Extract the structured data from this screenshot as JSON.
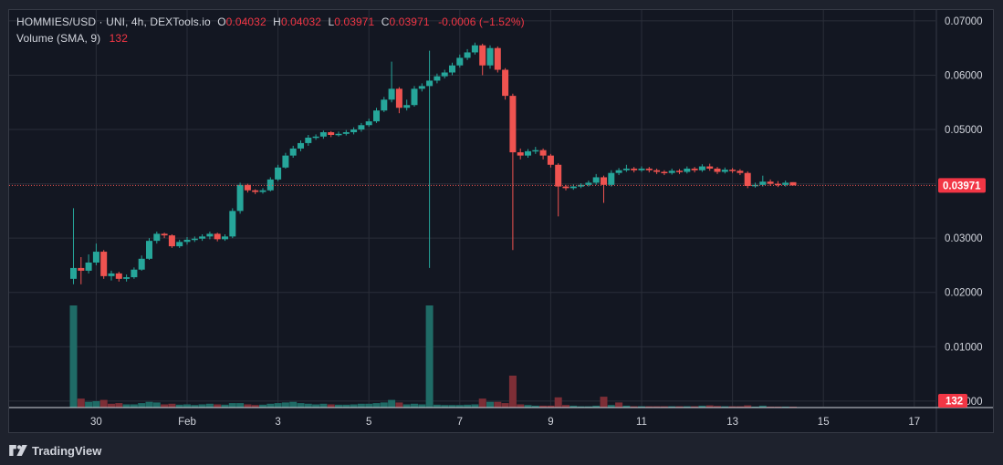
{
  "header": {
    "symbol": "HOMMIES/USD · UNI, 4h, DEXTools.io",
    "open_label": "O",
    "open": "0.04032",
    "high_label": "H",
    "high": "0.04032",
    "low_label": "L",
    "low": "0.03971",
    "close_label": "C",
    "close": "0.03971",
    "change": "-0.0006 (−1.52%)",
    "volume_label": "Volume (SMA, 9)",
    "volume_value": "132"
  },
  "branding": {
    "name": "TradingView",
    "logo_icon": "tradingview-logo-icon"
  },
  "price_badge": "0.03971",
  "volume_badge": "132",
  "colors": {
    "up": "#26a69a",
    "down": "#ef5350",
    "up_vol": "#1f6b66",
    "down_vol": "#7d2e36",
    "price_line": "#ef5350",
    "badge": "#f23645"
  },
  "chart_data": {
    "type": "candlestick",
    "y_axis": {
      "ticks": [
        "0.07000",
        "0.06000",
        "0.05000",
        "0.04000",
        "0.03000",
        "0.02000",
        "0.01000",
        "0.00000"
      ],
      "ylim": [
        -0.0012,
        0.072
      ]
    },
    "x_axis": {
      "ticks": [
        "30",
        "Feb",
        "3",
        "5",
        "7",
        "9",
        "11",
        "13",
        "15",
        "17"
      ]
    },
    "last_price": 0.03971,
    "candles": [
      [
        0.0,
        0.0225,
        0.0245,
        0.0355,
        0.0215
      ],
      [
        0.5,
        0.0245,
        0.024,
        0.0265,
        0.0215
      ],
      [
        1.0,
        0.024,
        0.0255,
        0.027,
        0.0235
      ],
      [
        1.5,
        0.0255,
        0.0275,
        0.029,
        0.025
      ],
      [
        2.0,
        0.0275,
        0.023,
        0.0278,
        0.0225
      ],
      [
        2.5,
        0.023,
        0.0235,
        0.024,
        0.0222
      ],
      [
        3.0,
        0.0235,
        0.0225,
        0.0238,
        0.022
      ],
      [
        3.5,
        0.0225,
        0.0228,
        0.0233,
        0.022
      ],
      [
        4.0,
        0.0228,
        0.0242,
        0.0246,
        0.0225
      ],
      [
        4.5,
        0.0242,
        0.0262,
        0.0268,
        0.024
      ],
      [
        5.0,
        0.0262,
        0.0295,
        0.03,
        0.026
      ],
      [
        5.5,
        0.0295,
        0.0308,
        0.0312,
        0.029
      ],
      [
        6.0,
        0.0308,
        0.0305,
        0.031,
        0.03
      ],
      [
        6.5,
        0.0305,
        0.0285,
        0.0307,
        0.0282
      ],
      [
        7.0,
        0.0285,
        0.0293,
        0.0297,
        0.0282
      ],
      [
        7.5,
        0.0293,
        0.0297,
        0.0302,
        0.0288
      ],
      [
        8.0,
        0.0297,
        0.0299,
        0.0303,
        0.0293
      ],
      [
        8.5,
        0.0299,
        0.0303,
        0.0307,
        0.0295
      ],
      [
        9.0,
        0.0303,
        0.0308,
        0.0312,
        0.0298
      ],
      [
        9.5,
        0.0308,
        0.0298,
        0.031,
        0.0294
      ],
      [
        10.0,
        0.0298,
        0.0303,
        0.0307,
        0.0295
      ],
      [
        10.5,
        0.0303,
        0.035,
        0.0355,
        0.03
      ],
      [
        11.0,
        0.035,
        0.0398,
        0.0402,
        0.0345
      ],
      [
        11.5,
        0.0398,
        0.0388,
        0.04,
        0.0384
      ],
      [
        12.0,
        0.0388,
        0.0385,
        0.039,
        0.0381
      ],
      [
        12.5,
        0.0385,
        0.0388,
        0.0392,
        0.0382
      ],
      [
        13.0,
        0.0388,
        0.0408,
        0.0412,
        0.0386
      ],
      [
        13.5,
        0.0408,
        0.043,
        0.0435,
        0.0405
      ],
      [
        14.0,
        0.043,
        0.0452,
        0.0457,
        0.0428
      ],
      [
        14.5,
        0.0452,
        0.0465,
        0.047,
        0.0448
      ],
      [
        15.0,
        0.0465,
        0.0475,
        0.048,
        0.046
      ],
      [
        15.5,
        0.0475,
        0.0485,
        0.049,
        0.047
      ],
      [
        16.0,
        0.0485,
        0.0487,
        0.0491,
        0.0481
      ],
      [
        16.5,
        0.0487,
        0.0495,
        0.0498,
        0.0483
      ],
      [
        17.0,
        0.0495,
        0.049,
        0.0497,
        0.0486
      ],
      [
        17.5,
        0.049,
        0.0492,
        0.0496,
        0.0487
      ],
      [
        18.0,
        0.0492,
        0.0495,
        0.0499,
        0.0489
      ],
      [
        18.5,
        0.0495,
        0.05,
        0.0504,
        0.0491
      ],
      [
        19.0,
        0.05,
        0.0508,
        0.0512,
        0.0496
      ],
      [
        19.5,
        0.0508,
        0.0515,
        0.052,
        0.0505
      ],
      [
        20.0,
        0.0515,
        0.0535,
        0.054,
        0.0512
      ],
      [
        20.5,
        0.0535,
        0.0555,
        0.056,
        0.0532
      ],
      [
        21.0,
        0.0555,
        0.0575,
        0.0625,
        0.055
      ],
      [
        21.5,
        0.0575,
        0.054,
        0.0578,
        0.053
      ],
      [
        22.0,
        0.054,
        0.0545,
        0.0555,
        0.0535
      ],
      [
        22.5,
        0.0545,
        0.0575,
        0.058,
        0.0542
      ],
      [
        23.0,
        0.0575,
        0.058,
        0.0585,
        0.057
      ],
      [
        23.5,
        0.058,
        0.059,
        0.0645,
        0.0245
      ],
      [
        24.0,
        0.059,
        0.0598,
        0.0603,
        0.0585
      ],
      [
        24.5,
        0.0598,
        0.0605,
        0.061,
        0.0594
      ],
      [
        25.0,
        0.0605,
        0.0618,
        0.0623,
        0.06
      ],
      [
        25.5,
        0.0618,
        0.0632,
        0.0638,
        0.0614
      ],
      [
        26.0,
        0.0632,
        0.0642,
        0.0648,
        0.0628
      ],
      [
        26.5,
        0.0642,
        0.0655,
        0.066,
        0.0638
      ],
      [
        27.0,
        0.0655,
        0.0618,
        0.0658,
        0.06
      ],
      [
        27.5,
        0.0618,
        0.065,
        0.0655,
        0.0612
      ],
      [
        28.0,
        0.065,
        0.061,
        0.0653,
        0.0605
      ],
      [
        28.5,
        0.061,
        0.0562,
        0.0613,
        0.0555
      ],
      [
        29.0,
        0.0562,
        0.0458,
        0.0566,
        0.0278
      ],
      [
        29.5,
        0.0458,
        0.0452,
        0.0465,
        0.0445
      ],
      [
        30.0,
        0.0452,
        0.046,
        0.0464,
        0.0448
      ],
      [
        30.5,
        0.046,
        0.0462,
        0.0468,
        0.0455
      ],
      [
        31.0,
        0.0462,
        0.0452,
        0.0465,
        0.0445
      ],
      [
        31.5,
        0.0452,
        0.0435,
        0.0455,
        0.043
      ],
      [
        32.0,
        0.0435,
        0.0395,
        0.0438,
        0.034
      ],
      [
        32.5,
        0.0395,
        0.0392,
        0.0398,
        0.0388
      ],
      [
        33.0,
        0.0392,
        0.0395,
        0.0399,
        0.0389
      ],
      [
        33.5,
        0.0395,
        0.0398,
        0.0401,
        0.0392
      ],
      [
        34.0,
        0.0398,
        0.0402,
        0.0406,
        0.0395
      ],
      [
        34.5,
        0.0402,
        0.0412,
        0.0418,
        0.0398
      ],
      [
        35.0,
        0.0412,
        0.0398,
        0.0415,
        0.0365
      ],
      [
        35.5,
        0.0398,
        0.042,
        0.0425,
        0.0395
      ],
      [
        36.0,
        0.042,
        0.0425,
        0.0429,
        0.0416
      ],
      [
        36.5,
        0.0425,
        0.0428,
        0.0435,
        0.0422
      ],
      [
        37.0,
        0.0428,
        0.0425,
        0.0431,
        0.0421
      ],
      [
        37.5,
        0.0425,
        0.0428,
        0.0432,
        0.0422
      ],
      [
        38.0,
        0.0428,
        0.0425,
        0.0431,
        0.0421
      ],
      [
        38.5,
        0.0425,
        0.0422,
        0.0428,
        0.0418
      ],
      [
        39.0,
        0.0422,
        0.042,
        0.0425,
        0.0416
      ],
      [
        39.5,
        0.042,
        0.0424,
        0.0428,
        0.0417
      ],
      [
        40.0,
        0.0424,
        0.0422,
        0.0427,
        0.0418
      ],
      [
        40.5,
        0.0422,
        0.0428,
        0.0432,
        0.0419
      ],
      [
        41.0,
        0.0428,
        0.0425,
        0.0431,
        0.0421
      ],
      [
        41.5,
        0.0425,
        0.0432,
        0.0436,
        0.0422
      ],
      [
        42.0,
        0.0432,
        0.0428,
        0.0437,
        0.0424
      ],
      [
        42.5,
        0.0428,
        0.0422,
        0.0431,
        0.0418
      ],
      [
        43.0,
        0.0422,
        0.0426,
        0.043,
        0.0419
      ],
      [
        43.5,
        0.0426,
        0.0424,
        0.0429,
        0.042
      ],
      [
        44.0,
        0.0424,
        0.042,
        0.0427,
        0.0416
      ],
      [
        44.5,
        0.042,
        0.0396,
        0.0423,
        0.0392
      ],
      [
        45.0,
        0.0396,
        0.0398,
        0.0402,
        0.0393
      ],
      [
        45.5,
        0.0398,
        0.0404,
        0.0415,
        0.0395
      ],
      [
        46.0,
        0.0404,
        0.04,
        0.0408,
        0.0396
      ],
      [
        46.5,
        0.04,
        0.0398,
        0.0405,
        0.0394
      ],
      [
        47.0,
        0.0398,
        0.0402,
        0.0406,
        0.0395
      ],
      [
        47.5,
        0.0403,
        0.0397,
        0.0403,
        0.0397
      ]
    ],
    "volume": [
      [
        0.0,
        16000,
        "up"
      ],
      [
        0.5,
        1400,
        "down"
      ],
      [
        1.0,
        900,
        "up"
      ],
      [
        1.5,
        1000,
        "up"
      ],
      [
        2.0,
        1200,
        "down"
      ],
      [
        2.5,
        600,
        "down"
      ],
      [
        3.0,
        700,
        "down"
      ],
      [
        3.5,
        500,
        "up"
      ],
      [
        4.0,
        500,
        "up"
      ],
      [
        4.5,
        700,
        "up"
      ],
      [
        5.0,
        900,
        "up"
      ],
      [
        5.5,
        800,
        "up"
      ],
      [
        6.0,
        500,
        "down"
      ],
      [
        6.5,
        600,
        "down"
      ],
      [
        7.0,
        450,
        "up"
      ],
      [
        7.5,
        500,
        "up"
      ],
      [
        8.0,
        400,
        "up"
      ],
      [
        8.5,
        500,
        "up"
      ],
      [
        9.0,
        600,
        "up"
      ],
      [
        9.5,
        500,
        "down"
      ],
      [
        10.0,
        450,
        "up"
      ],
      [
        10.5,
        700,
        "up"
      ],
      [
        11.0,
        700,
        "up"
      ],
      [
        11.5,
        500,
        "down"
      ],
      [
        12.0,
        400,
        "down"
      ],
      [
        12.5,
        450,
        "up"
      ],
      [
        13.0,
        600,
        "up"
      ],
      [
        13.5,
        700,
        "up"
      ],
      [
        14.0,
        800,
        "up"
      ],
      [
        14.5,
        900,
        "up"
      ],
      [
        15.0,
        700,
        "up"
      ],
      [
        15.5,
        600,
        "up"
      ],
      [
        16.0,
        500,
        "up"
      ],
      [
        16.5,
        600,
        "up"
      ],
      [
        17.0,
        500,
        "down"
      ],
      [
        17.5,
        450,
        "up"
      ],
      [
        18.0,
        450,
        "up"
      ],
      [
        18.5,
        500,
        "up"
      ],
      [
        19.0,
        600,
        "up"
      ],
      [
        19.5,
        600,
        "up"
      ],
      [
        20.0,
        700,
        "up"
      ],
      [
        20.5,
        800,
        "up"
      ],
      [
        21.0,
        1200,
        "up"
      ],
      [
        21.5,
        800,
        "down"
      ],
      [
        22.0,
        500,
        "up"
      ],
      [
        22.5,
        600,
        "up"
      ],
      [
        23.0,
        500,
        "up"
      ],
      [
        23.5,
        16000,
        "up"
      ],
      [
        24.0,
        450,
        "up"
      ],
      [
        24.5,
        400,
        "up"
      ],
      [
        25.0,
        400,
        "up"
      ],
      [
        25.5,
        400,
        "up"
      ],
      [
        26.0,
        450,
        "up"
      ],
      [
        26.5,
        500,
        "up"
      ],
      [
        27.0,
        1400,
        "down"
      ],
      [
        27.5,
        900,
        "up"
      ],
      [
        28.0,
        900,
        "down"
      ],
      [
        28.5,
        700,
        "down"
      ],
      [
        29.0,
        5000,
        "down"
      ],
      [
        29.5,
        500,
        "down"
      ],
      [
        30.0,
        400,
        "up"
      ],
      [
        30.5,
        300,
        "up"
      ],
      [
        31.0,
        300,
        "down"
      ],
      [
        31.5,
        300,
        "down"
      ],
      [
        32.0,
        1600,
        "down"
      ],
      [
        32.5,
        400,
        "down"
      ],
      [
        33.0,
        300,
        "up"
      ],
      [
        33.5,
        200,
        "up"
      ],
      [
        34.0,
        200,
        "up"
      ],
      [
        34.5,
        300,
        "up"
      ],
      [
        35.0,
        1700,
        "down"
      ],
      [
        35.5,
        400,
        "up"
      ],
      [
        36.0,
        800,
        "down"
      ],
      [
        36.5,
        300,
        "up"
      ],
      [
        37.0,
        200,
        "down"
      ],
      [
        37.5,
        200,
        "up"
      ],
      [
        38.0,
        200,
        "down"
      ],
      [
        38.5,
        200,
        "down"
      ],
      [
        39.0,
        200,
        "down"
      ],
      [
        39.5,
        200,
        "up"
      ],
      [
        40.0,
        200,
        "down"
      ],
      [
        40.5,
        200,
        "up"
      ],
      [
        41.0,
        200,
        "down"
      ],
      [
        41.5,
        300,
        "up"
      ],
      [
        42.0,
        350,
        "down"
      ],
      [
        42.5,
        250,
        "down"
      ],
      [
        43.0,
        200,
        "up"
      ],
      [
        43.5,
        200,
        "down"
      ],
      [
        44.0,
        200,
        "down"
      ],
      [
        44.5,
        350,
        "down"
      ],
      [
        45.0,
        150,
        "up"
      ],
      [
        45.5,
        300,
        "up"
      ],
      [
        46.0,
        150,
        "down"
      ],
      [
        46.5,
        150,
        "down"
      ],
      [
        47.0,
        150,
        "up"
      ],
      [
        47.5,
        132,
        "down"
      ]
    ],
    "volume_max": 16000
  }
}
